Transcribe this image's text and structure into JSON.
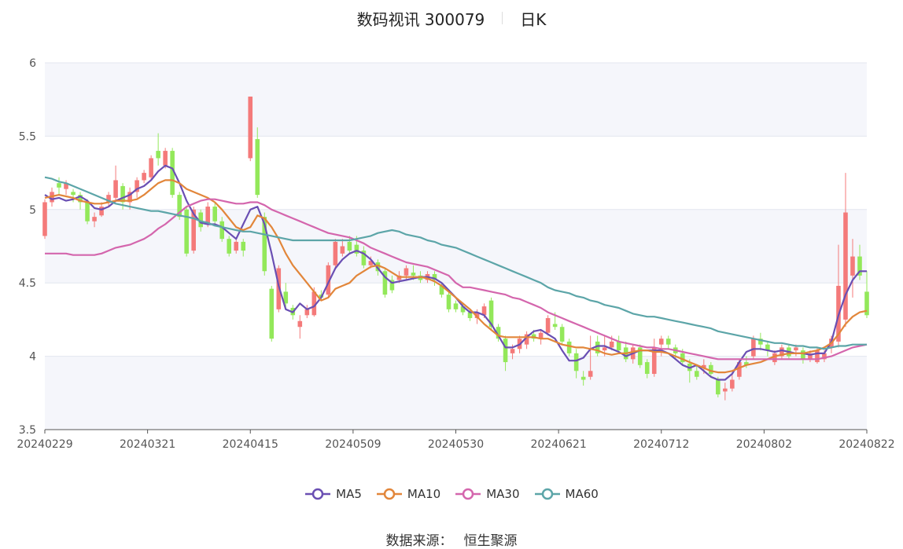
{
  "title": {
    "name": "数码视讯 300079",
    "period": "日K"
  },
  "source": {
    "label": "数据来源：",
    "value": "恒生聚源"
  },
  "chart_data": {
    "type": "candlestick",
    "xlabel": "",
    "ylabel": "",
    "ylim": [
      3.5,
      6
    ],
    "yticks": [
      "3.5",
      "4",
      "4.5",
      "5",
      "5.5",
      "6"
    ],
    "xticks": [
      "20240229",
      "20240321",
      "20240415",
      "20240509",
      "20240530",
      "20240621",
      "20240712",
      "20240802",
      "20240822"
    ],
    "grid": true,
    "legend_position": "bottom",
    "up_color": "#f47a7a",
    "down_color": "#93e85a",
    "candles": [
      [
        4.82,
        5.05,
        5.07,
        4.8
      ],
      [
        5.05,
        5.12,
        5.15,
        5.02
      ],
      [
        5.18,
        5.15,
        5.22,
        5.1
      ],
      [
        5.14,
        5.18,
        5.2,
        5.1
      ],
      [
        5.12,
        5.1,
        5.14,
        5.05
      ],
      [
        5.1,
        5.05,
        5.12,
        5.0
      ],
      [
        5.05,
        4.92,
        5.07,
        4.9
      ],
      [
        4.92,
        4.95,
        4.98,
        4.88
      ],
      [
        4.96,
        5.02,
        5.05,
        4.95
      ],
      [
        5.05,
        5.1,
        5.12,
        5.02
      ],
      [
        5.08,
        5.2,
        5.3,
        5.05
      ],
      [
        5.16,
        5.05,
        5.18,
        5.0
      ],
      [
        5.05,
        5.12,
        5.15,
        5.0
      ],
      [
        5.12,
        5.2,
        5.22,
        5.08
      ],
      [
        5.2,
        5.25,
        5.27,
        5.18
      ],
      [
        5.22,
        5.35,
        5.37,
        5.2
      ],
      [
        5.4,
        5.35,
        5.52,
        5.3
      ],
      [
        5.3,
        5.4,
        5.42,
        5.28
      ],
      [
        5.4,
        5.1,
        5.42,
        5.08
      ],
      [
        5.1,
        4.95,
        5.12,
        4.93
      ],
      [
        5.0,
        4.7,
        5.02,
        4.68
      ],
      [
        4.72,
        5.0,
        5.02,
        4.7
      ],
      [
        4.98,
        4.88,
        5.0,
        4.85
      ],
      [
        4.9,
        5.02,
        5.05,
        4.88
      ],
      [
        5.02,
        4.92,
        5.05,
        4.9
      ],
      [
        4.92,
        4.8,
        4.95,
        4.78
      ],
      [
        4.8,
        4.7,
        4.82,
        4.68
      ],
      [
        4.72,
        4.78,
        4.8,
        4.7
      ],
      [
        4.78,
        4.72,
        4.8,
        4.68
      ],
      [
        5.35,
        5.77,
        5.77,
        5.33
      ],
      [
        5.48,
        5.1,
        5.56,
        5.08
      ],
      [
        4.95,
        4.58,
        4.98,
        4.55
      ],
      [
        4.46,
        4.12,
        4.48,
        4.1
      ],
      [
        4.32,
        4.6,
        4.62,
        4.3
      ],
      [
        4.44,
        4.36,
        4.5,
        4.33
      ],
      [
        4.33,
        4.28,
        4.35,
        4.25
      ],
      [
        4.2,
        4.24,
        4.28,
        4.12
      ],
      [
        4.28,
        4.32,
        4.35,
        4.26
      ],
      [
        4.28,
        4.44,
        4.47,
        4.27
      ],
      [
        4.42,
        4.4,
        4.45,
        4.38
      ],
      [
        4.42,
        4.62,
        4.64,
        4.4
      ],
      [
        4.62,
        4.78,
        4.8,
        4.6
      ],
      [
        4.7,
        4.75,
        4.8,
        4.68
      ],
      [
        4.78,
        4.72,
        4.82,
        4.7
      ],
      [
        4.76,
        4.7,
        4.82,
        4.68
      ],
      [
        4.72,
        4.62,
        4.75,
        4.6
      ],
      [
        4.62,
        4.65,
        4.68,
        4.6
      ],
      [
        4.64,
        4.58,
        4.66,
        4.55
      ],
      [
        4.58,
        4.42,
        4.6,
        4.4
      ],
      [
        4.52,
        4.45,
        4.55,
        4.43
      ],
      [
        4.52,
        4.55,
        4.58,
        4.5
      ],
      [
        4.55,
        4.6,
        4.62,
        4.52
      ],
      [
        4.57,
        4.55,
        4.62,
        4.52
      ],
      [
        4.55,
        4.52,
        4.58,
        4.5
      ],
      [
        4.52,
        4.56,
        4.58,
        4.5
      ],
      [
        4.56,
        4.52,
        4.58,
        4.48
      ],
      [
        4.48,
        4.42,
        4.5,
        4.4
      ],
      [
        4.42,
        4.32,
        4.44,
        4.3
      ],
      [
        4.36,
        4.32,
        4.38,
        4.3
      ],
      [
        4.34,
        4.3,
        4.36,
        4.28
      ],
      [
        4.3,
        4.26,
        4.32,
        4.24
      ],
      [
        4.26,
        4.3,
        4.32,
        4.22
      ],
      [
        4.28,
        4.34,
        4.36,
        4.26
      ],
      [
        4.38,
        4.2,
        4.4,
        4.18
      ],
      [
        4.2,
        4.12,
        4.22,
        4.1
      ],
      [
        4.12,
        3.96,
        4.14,
        3.9
      ],
      [
        4.02,
        4.05,
        4.08,
        3.98
      ],
      [
        4.05,
        4.12,
        4.14,
        4.02
      ],
      [
        4.08,
        4.15,
        4.17,
        4.05
      ],
      [
        4.15,
        4.12,
        4.18,
        4.1
      ],
      [
        4.12,
        4.16,
        4.18,
        4.08
      ],
      [
        4.16,
        4.26,
        4.28,
        4.14
      ],
      [
        4.22,
        4.2,
        4.3,
        4.18
      ],
      [
        4.2,
        4.1,
        4.22,
        4.08
      ],
      [
        4.1,
        4.02,
        4.12,
        4.0
      ],
      [
        4.02,
        3.9,
        4.05,
        3.85
      ],
      [
        3.86,
        3.84,
        3.9,
        3.8
      ],
      [
        3.86,
        3.9,
        4.14,
        3.84
      ],
      [
        4.1,
        4.02,
        4.14,
        4.0
      ],
      [
        4.04,
        4.06,
        4.14,
        4.0
      ],
      [
        4.06,
        4.1,
        4.14,
        4.04
      ],
      [
        4.1,
        4.04,
        4.14,
        4.02
      ],
      [
        4.06,
        3.98,
        4.1,
        3.96
      ],
      [
        3.98,
        4.06,
        4.08,
        3.95
      ],
      [
        4.06,
        3.94,
        4.08,
        3.92
      ],
      [
        3.96,
        3.88,
        3.98,
        3.85
      ],
      [
        3.88,
        4.06,
        4.12,
        3.86
      ],
      [
        4.08,
        4.12,
        4.14,
        4.0
      ],
      [
        4.12,
        4.08,
        4.14,
        4.05
      ],
      [
        4.06,
        4.02,
        4.08,
        3.98
      ],
      [
        4.02,
        3.96,
        4.05,
        3.94
      ],
      [
        3.95,
        3.9,
        3.98,
        3.82
      ],
      [
        3.9,
        3.86,
        3.94,
        3.84
      ],
      [
        3.92,
        3.94,
        3.98,
        3.88
      ],
      [
        3.94,
        3.88,
        3.96,
        3.86
      ],
      [
        3.84,
        3.74,
        3.86,
        3.72
      ],
      [
        3.76,
        3.78,
        3.82,
        3.7
      ],
      [
        3.78,
        3.84,
        3.88,
        3.76
      ],
      [
        3.86,
        3.96,
        3.98,
        3.84
      ],
      [
        3.96,
        3.94,
        4.0,
        3.92
      ],
      [
        4.0,
        4.12,
        4.14,
        3.98
      ],
      [
        4.12,
        4.08,
        4.16,
        4.04
      ],
      [
        4.08,
        4.04,
        4.1,
        4.0
      ],
      [
        3.96,
        4.02,
        4.04,
        3.94
      ],
      [
        4.0,
        4.06,
        4.08,
        3.98
      ],
      [
        4.06,
        4.0,
        4.08,
        3.98
      ],
      [
        4.04,
        4.06,
        4.08,
        4.0
      ],
      [
        4.04,
        3.98,
        4.06,
        3.95
      ],
      [
        3.98,
        4.02,
        4.04,
        3.96
      ],
      [
        3.96,
        4.04,
        4.06,
        3.95
      ],
      [
        3.98,
        4.02,
        4.04,
        3.96
      ],
      [
        4.06,
        4.12,
        4.14,
        4.02
      ],
      [
        4.1,
        4.48,
        4.76,
        4.06
      ],
      [
        4.25,
        4.98,
        5.25,
        4.2
      ],
      [
        4.55,
        4.68,
        4.8,
        4.4
      ],
      [
        4.68,
        4.55,
        4.76,
        4.52
      ],
      [
        4.44,
        4.28,
        4.58,
        4.26
      ]
    ],
    "series": [
      {
        "name": "MA5",
        "color": "#6a4fb3",
        "values": [
          5.1,
          5.07,
          5.08,
          5.06,
          5.07,
          5.09,
          5.06,
          5.01,
          5.0,
          5.02,
          5.06,
          5.08,
          5.1,
          5.14,
          5.16,
          5.2,
          5.26,
          5.3,
          5.28,
          5.18,
          5.06,
          4.97,
          4.91,
          4.9,
          4.9,
          4.88,
          4.84,
          4.8,
          4.9,
          5.0,
          5.02,
          4.9,
          4.7,
          4.48,
          4.32,
          4.3,
          4.36,
          4.32,
          4.34,
          4.4,
          4.5,
          4.6,
          4.66,
          4.7,
          4.72,
          4.7,
          4.66,
          4.6,
          4.54,
          4.5,
          4.51,
          4.52,
          4.53,
          4.54,
          4.54,
          4.53,
          4.5,
          4.45,
          4.4,
          4.34,
          4.3,
          4.3,
          4.28,
          4.22,
          4.14,
          4.06,
          4.06,
          4.08,
          4.13,
          4.17,
          4.18,
          4.15,
          4.12,
          4.04,
          3.97,
          3.97,
          3.99,
          4.05,
          4.07,
          4.07,
          4.05,
          4.03,
          4.0,
          4.02,
          4.04,
          4.04,
          4.04,
          4.04,
          4.02,
          3.98,
          3.94,
          3.92,
          3.94,
          3.9,
          3.86,
          3.84,
          3.84,
          3.88,
          3.96,
          4.03,
          4.05,
          4.05,
          4.04,
          4.03,
          4.04,
          4.03,
          4.02,
          4.02,
          4.01,
          4.02,
          4.02,
          4.1,
          4.28,
          4.42,
          4.52,
          4.58,
          4.58
        ]
      },
      {
        "name": "MA10",
        "color": "#e2863a",
        "values": [
          5.08,
          5.09,
          5.1,
          5.09,
          5.08,
          5.06,
          5.05,
          5.04,
          5.04,
          5.05,
          5.06,
          5.06,
          5.06,
          5.07,
          5.1,
          5.14,
          5.18,
          5.2,
          5.2,
          5.18,
          5.14,
          5.12,
          5.1,
          5.08,
          5.05,
          5.0,
          4.94,
          4.88,
          4.86,
          4.88,
          4.96,
          4.94,
          4.88,
          4.8,
          4.7,
          4.62,
          4.56,
          4.5,
          4.44,
          4.38,
          4.4,
          4.46,
          4.48,
          4.5,
          4.55,
          4.58,
          4.61,
          4.62,
          4.6,
          4.57,
          4.54,
          4.54,
          4.54,
          4.54,
          4.53,
          4.51,
          4.48,
          4.44,
          4.4,
          4.36,
          4.32,
          4.27,
          4.22,
          4.18,
          4.14,
          4.13,
          4.13,
          4.13,
          4.13,
          4.13,
          4.12,
          4.12,
          4.1,
          4.08,
          4.07,
          4.06,
          4.06,
          4.05,
          4.04,
          4.02,
          4.01,
          4.02,
          4.02,
          4.03,
          4.04,
          4.04,
          4.03,
          4.03,
          4.02,
          4.0,
          3.98,
          3.96,
          3.94,
          3.92,
          3.9,
          3.89,
          3.89,
          3.9,
          3.92,
          3.94,
          3.95,
          3.96,
          3.98,
          4.0,
          4.01,
          4.02,
          4.02,
          4.02,
          4.03,
          4.04,
          4.06,
          4.09,
          4.15,
          4.22,
          4.27,
          4.3,
          4.31
        ]
      },
      {
        "name": "MA30",
        "color": "#d466ad",
        "values": [
          4.7,
          4.7,
          4.7,
          4.7,
          4.69,
          4.69,
          4.69,
          4.69,
          4.7,
          4.72,
          4.74,
          4.75,
          4.76,
          4.78,
          4.8,
          4.83,
          4.87,
          4.9,
          4.94,
          4.98,
          5.02,
          5.04,
          5.06,
          5.07,
          5.07,
          5.06,
          5.05,
          5.04,
          5.04,
          5.05,
          5.05,
          5.03,
          5.0,
          4.98,
          4.96,
          4.94,
          4.92,
          4.9,
          4.88,
          4.86,
          4.84,
          4.83,
          4.82,
          4.81,
          4.79,
          4.77,
          4.74,
          4.72,
          4.7,
          4.68,
          4.66,
          4.64,
          4.63,
          4.62,
          4.61,
          4.59,
          4.57,
          4.55,
          4.5,
          4.47,
          4.47,
          4.46,
          4.45,
          4.44,
          4.43,
          4.42,
          4.4,
          4.39,
          4.37,
          4.35,
          4.33,
          4.3,
          4.28,
          4.26,
          4.24,
          4.22,
          4.2,
          4.18,
          4.16,
          4.14,
          4.12,
          4.1,
          4.09,
          4.08,
          4.07,
          4.06,
          4.06,
          4.05,
          4.05,
          4.04,
          4.03,
          4.02,
          4.01,
          4.0,
          3.99,
          3.98,
          3.98,
          3.98,
          3.98,
          3.98,
          3.98,
          3.98,
          3.98,
          3.98,
          3.98,
          3.98,
          3.98,
          3.98,
          3.98,
          3.98,
          3.99,
          4.0,
          4.02,
          4.04,
          4.06,
          4.07,
          4.08
        ]
      },
      {
        "name": "MA60",
        "color": "#5ca5a8",
        "values": [
          5.22,
          5.21,
          5.19,
          5.18,
          5.16,
          5.14,
          5.12,
          5.1,
          5.08,
          5.06,
          5.04,
          5.03,
          5.02,
          5.01,
          5.0,
          4.99,
          4.99,
          4.98,
          4.97,
          4.96,
          4.95,
          4.94,
          4.92,
          4.91,
          4.89,
          4.88,
          4.87,
          4.86,
          4.85,
          4.85,
          4.84,
          4.83,
          4.82,
          4.81,
          4.8,
          4.79,
          4.79,
          4.79,
          4.79,
          4.79,
          4.79,
          4.79,
          4.79,
          4.79,
          4.8,
          4.81,
          4.82,
          4.84,
          4.85,
          4.86,
          4.85,
          4.83,
          4.82,
          4.81,
          4.79,
          4.78,
          4.76,
          4.75,
          4.74,
          4.72,
          4.7,
          4.68,
          4.66,
          4.64,
          4.62,
          4.6,
          4.58,
          4.56,
          4.54,
          4.52,
          4.5,
          4.47,
          4.45,
          4.44,
          4.43,
          4.41,
          4.4,
          4.38,
          4.37,
          4.35,
          4.34,
          4.33,
          4.31,
          4.29,
          4.28,
          4.27,
          4.27,
          4.26,
          4.25,
          4.24,
          4.23,
          4.22,
          4.21,
          4.2,
          4.19,
          4.17,
          4.16,
          4.15,
          4.14,
          4.13,
          4.12,
          4.11,
          4.1,
          4.09,
          4.09,
          4.08,
          4.07,
          4.07,
          4.06,
          4.06,
          4.05,
          4.06,
          4.07,
          4.07,
          4.08,
          4.08,
          4.08
        ]
      }
    ]
  }
}
